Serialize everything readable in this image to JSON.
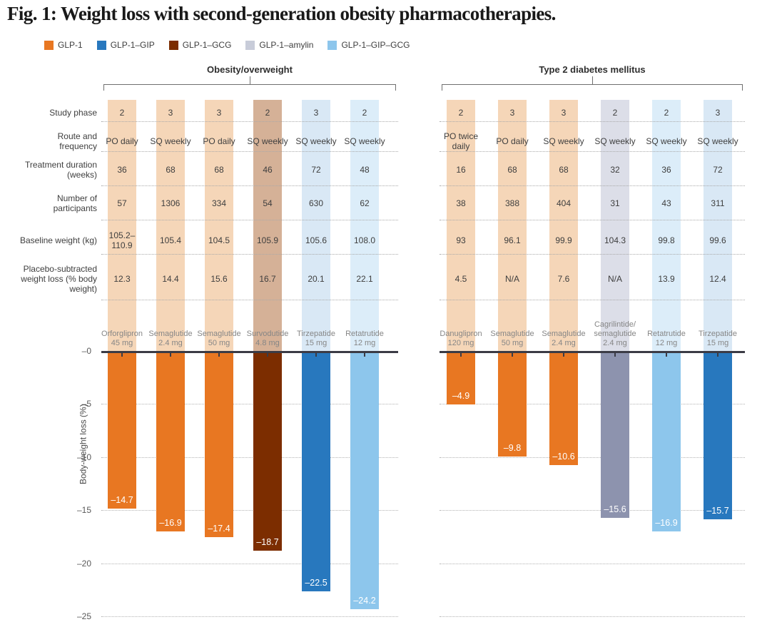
{
  "figure": {
    "title": "Fig. 1: Weight loss with second-generation obesity pharmacotherapies.",
    "ylabel": "Body-weight loss (%)",
    "row_labels": [
      "Study phase",
      "Route and frequency",
      "Treatment duration (weeks)",
      "Number of participants",
      "Baseline weight (kg)",
      "Placebo-subtracted weight loss (% body weight)"
    ],
    "y_ticks": [
      "–0",
      "–5",
      "–10",
      "–15",
      "–20",
      "–25"
    ]
  },
  "legend": [
    {
      "label": "GLP-1",
      "class_key": "glp1"
    },
    {
      "label": "GLP-1–GIP",
      "class_key": "glp1_gip"
    },
    {
      "label": "GLP-1–GCG",
      "class_key": "glp1_gcg"
    },
    {
      "label": "GLP-1–amylin",
      "class_key": "glp1_amylin"
    },
    {
      "label": "GLP-1–GIP–GCG",
      "class_key": "glp1_gip_gcg"
    }
  ],
  "chart_data": {
    "type": "bar",
    "title": "Fig. 1: Weight loss with second-generation obesity pharmacotherapies.",
    "ylabel": "Body-weight loss (%)",
    "ylim": [
      -25,
      0
    ],
    "yticks": [
      0,
      -5,
      -10,
      -15,
      -20,
      -25
    ],
    "grid": "dotted horizontal gridlines every 5 units, solid zero line",
    "legend_position": "top-left",
    "class_colors": {
      "glp1": {
        "label": "GLP-1",
        "bar": "#E87722",
        "band": "#F5D6B8",
        "legend": "#E87722"
      },
      "glp1_gip": {
        "label": "GLP-1–GIP",
        "bar": "#2878BE",
        "band": "#D9E8F5",
        "legend": "#2878BE"
      },
      "glp1_gcg": {
        "label": "GLP-1–GCG",
        "bar": "#7C2D00",
        "band": "#D5B197",
        "legend": "#7C2D00"
      },
      "glp1_amylin": {
        "label": "GLP-1–amylin",
        "bar": "#8D93AE",
        "band": "#DCDEE8",
        "legend": "#C8CCD9"
      },
      "glp1_gip_gcg": {
        "label": "GLP-1–GIP–GCG",
        "bar": "#8DC6EC",
        "band": "#DCEDF9",
        "legend": "#8DC6EC"
      }
    },
    "panels": [
      {
        "title": "Obesity/overweight",
        "columns": [
          {
            "drug": "Orforglipron",
            "dose": "45 mg",
            "class_key": "glp1",
            "phase": "2",
            "route": "PO daily",
            "duration": "36",
            "participants": "57",
            "baseline_weight": "105.2–110.9",
            "placebo_subtracted": "12.3",
            "value": -14.7,
            "bar_label": "–14.7"
          },
          {
            "drug": "Semaglutide",
            "dose": "2.4 mg",
            "class_key": "glp1",
            "phase": "3",
            "route": "SQ weekly",
            "duration": "68",
            "participants": "1306",
            "baseline_weight": "105.4",
            "placebo_subtracted": "14.4",
            "value": -16.9,
            "bar_label": "–16.9"
          },
          {
            "drug": "Semaglutide",
            "dose": "50 mg",
            "class_key": "glp1",
            "phase": "3",
            "route": "PO daily",
            "duration": "68",
            "participants": "334",
            "baseline_weight": "104.5",
            "placebo_subtracted": "15.6",
            "value": -17.4,
            "bar_label": "–17.4"
          },
          {
            "drug": "Survodutide",
            "dose": "4.8 mg",
            "class_key": "glp1_gcg",
            "phase": "2",
            "route": "SQ weekly",
            "duration": "46",
            "participants": "54",
            "baseline_weight": "105.9",
            "placebo_subtracted": "16.7",
            "value": -18.7,
            "bar_label": "–18.7"
          },
          {
            "drug": "Tirzepatide",
            "dose": "15 mg",
            "class_key": "glp1_gip",
            "phase": "3",
            "route": "SQ weekly",
            "duration": "72",
            "participants": "630",
            "baseline_weight": "105.6",
            "placebo_subtracted": "20.1",
            "value": -22.5,
            "bar_label": "–22.5"
          },
          {
            "drug": "Retatrutide",
            "dose": "12 mg",
            "class_key": "glp1_gip_gcg",
            "phase": "2",
            "route": "SQ weekly",
            "duration": "48",
            "participants": "62",
            "baseline_weight": "108.0",
            "placebo_subtracted": "22.1",
            "value": -24.2,
            "bar_label": "–24.2"
          }
        ]
      },
      {
        "title": "Type 2 diabetes mellitus",
        "columns": [
          {
            "drug": "Danuglipron",
            "dose": "120 mg",
            "class_key": "glp1",
            "phase": "2",
            "route": "PO twice daily",
            "duration": "16",
            "participants": "38",
            "baseline_weight": "93",
            "placebo_subtracted": "4.5",
            "value": -4.9,
            "bar_label": "–4.9"
          },
          {
            "drug": "Semaglutide",
            "dose": "50 mg",
            "class_key": "glp1",
            "phase": "3",
            "route": "PO daily",
            "duration": "68",
            "participants": "388",
            "baseline_weight": "96.1",
            "placebo_subtracted": "N/A",
            "value": -9.8,
            "bar_label": "–9.8"
          },
          {
            "drug": "Semaglutide",
            "dose": "2.4 mg",
            "class_key": "glp1",
            "phase": "3",
            "route": "SQ weekly",
            "duration": "68",
            "participants": "404",
            "baseline_weight": "99.9",
            "placebo_subtracted": "7.6",
            "value": -10.6,
            "bar_label": "–10.6"
          },
          {
            "drug": "Cagrilintide/semaglutide",
            "dose": "2.4 mg",
            "class_key": "glp1_amylin",
            "phase": "2",
            "route": "SQ weekly",
            "duration": "32",
            "participants": "31",
            "baseline_weight": "104.3",
            "placebo_subtracted": "N/A",
            "value": -15.6,
            "bar_label": "–15.6"
          },
          {
            "drug": "Retatrutide",
            "dose": "12 mg",
            "class_key": "glp1_gip_gcg",
            "phase": "2",
            "route": "SQ weekly",
            "duration": "36",
            "participants": "43",
            "baseline_weight": "99.8",
            "placebo_subtracted": "13.9",
            "value": -16.9,
            "bar_label": "–16.9"
          },
          {
            "drug": "Tirzepatide",
            "dose": "15 mg",
            "class_key": "glp1_gip",
            "phase": "3",
            "route": "SQ weekly",
            "duration": "72",
            "participants": "311",
            "baseline_weight": "99.6",
            "placebo_subtracted": "12.4",
            "value": -15.7,
            "bar_label": "–15.7"
          }
        ]
      }
    ]
  }
}
